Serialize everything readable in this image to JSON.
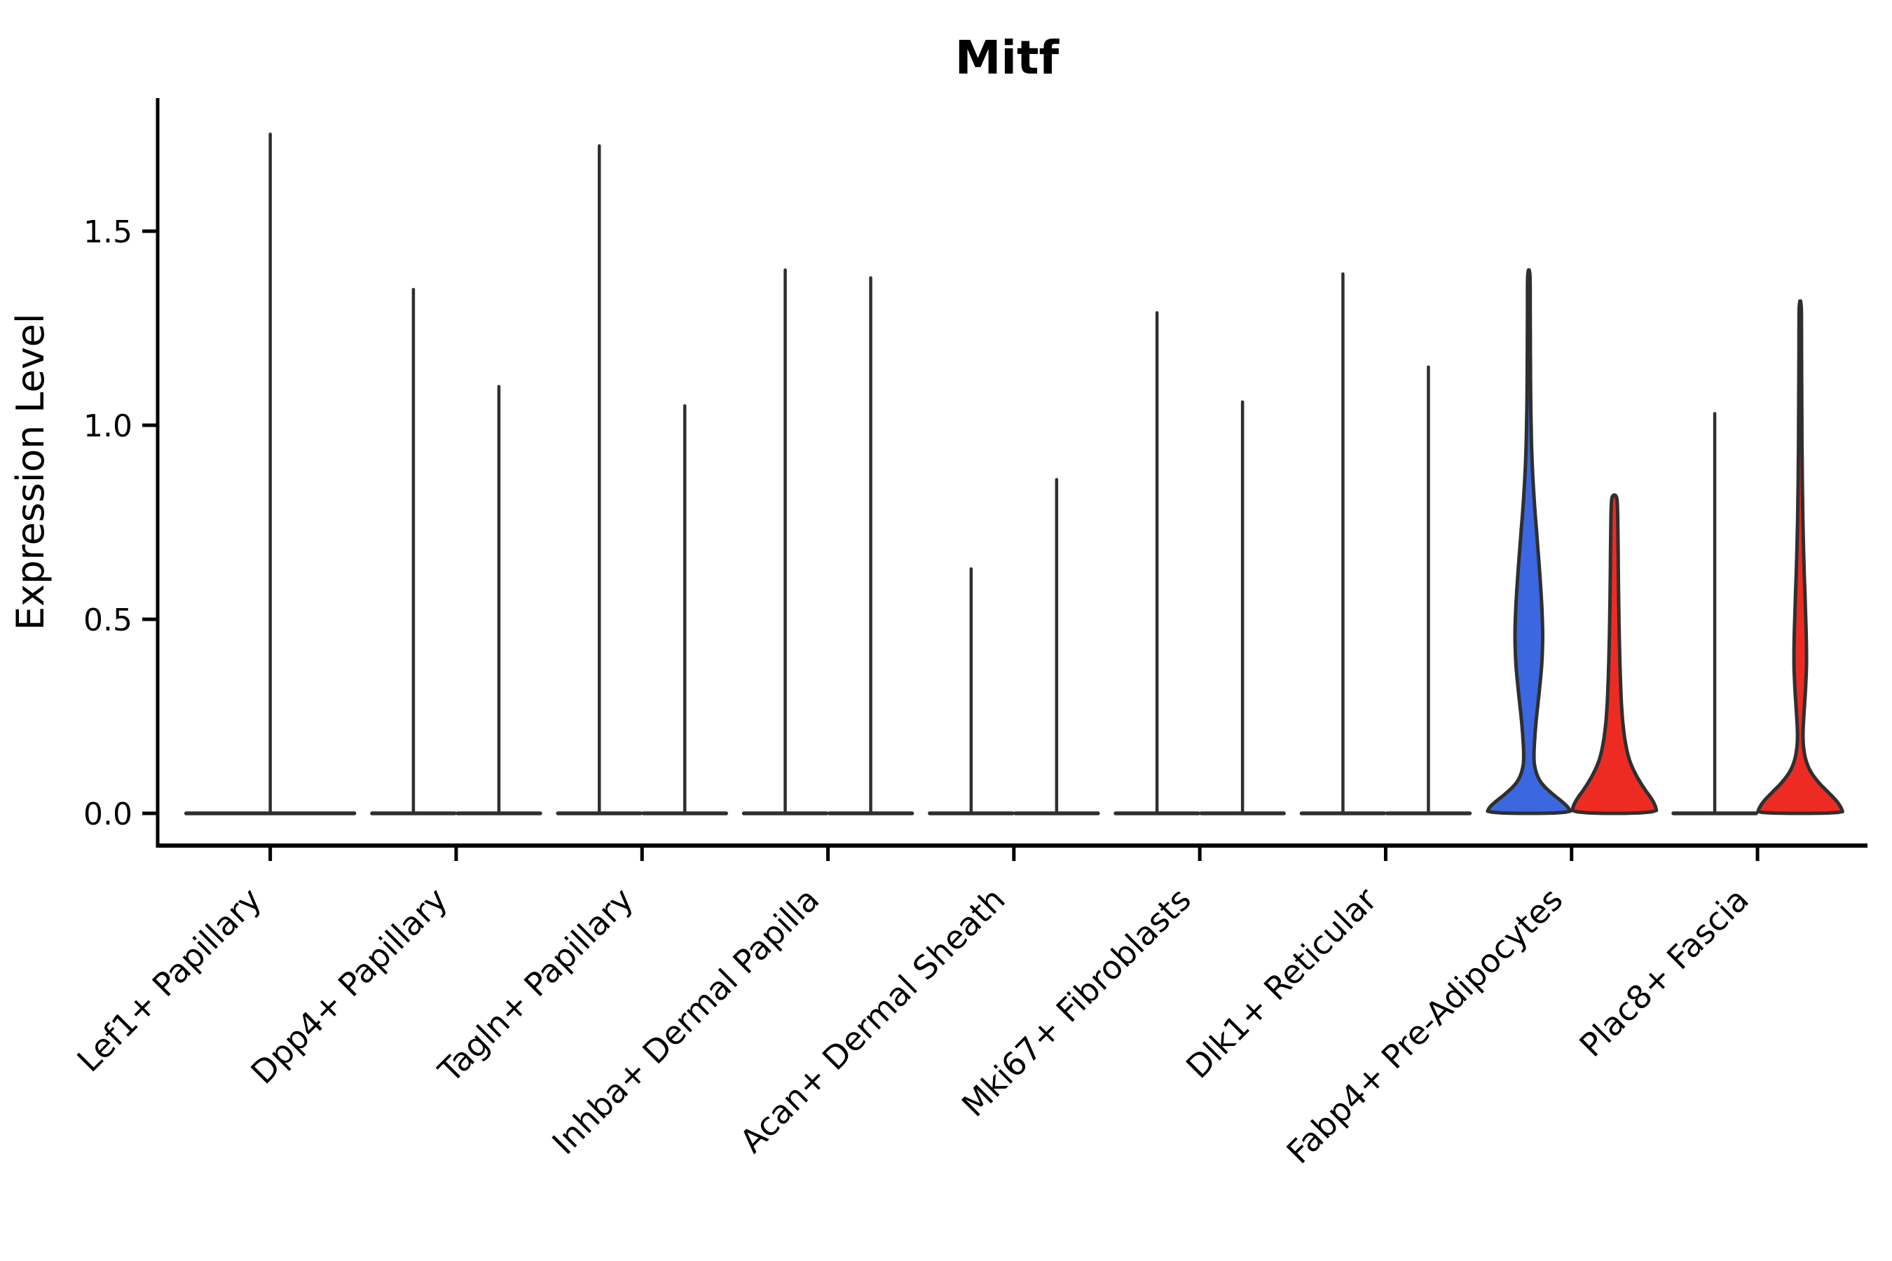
{
  "figure": {
    "title": "Mitf"
  },
  "chart_data": {
    "type": "violin",
    "title": "Mitf",
    "xlabel": "",
    "ylabel": "Expression Level",
    "yticks": [
      0.0,
      0.5,
      1.0,
      1.5
    ],
    "yticklabels": [
      "0.0",
      "0.5",
      "1.0",
      "1.5"
    ],
    "ylim": [
      -0.08,
      1.84
    ],
    "grid": false,
    "legend": "none",
    "categories": [
      "Lef1+ Papillary",
      "Dpp4+ Papillary",
      "Tagln+ Papillary",
      "Inhba+ Dermal Papilla",
      "Acan+ Dermal Sheath",
      "Mki67+ Fibroblasts",
      "Dlk1+ Reticular",
      "Fabp4+ Pre-Adipocytes",
      "Plac8+ Fascia"
    ],
    "colors": {
      "blue": "#3b68e0",
      "red": "#ee2b23",
      "spike": "#2f2f2f",
      "axis": "#000000"
    },
    "violins": [
      {
        "category_index": 0,
        "slot": 0,
        "shape": "spike",
        "max": 1.75,
        "base_halfwidth": 120,
        "color": "spike"
      },
      {
        "category_index": 1,
        "slot": -1,
        "shape": "spike",
        "max": 1.35,
        "base_halfwidth": 59,
        "color": "spike"
      },
      {
        "category_index": 1,
        "slot": 1,
        "shape": "spike",
        "max": 1.1,
        "base_halfwidth": 59,
        "color": "spike"
      },
      {
        "category_index": 2,
        "slot": -1,
        "shape": "spike",
        "max": 1.72,
        "base_halfwidth": 59,
        "color": "spike"
      },
      {
        "category_index": 2,
        "slot": 1,
        "shape": "spike",
        "max": 1.05,
        "base_halfwidth": 59,
        "color": "spike"
      },
      {
        "category_index": 3,
        "slot": -1,
        "shape": "spike",
        "max": 1.4,
        "base_halfwidth": 59,
        "color": "spike"
      },
      {
        "category_index": 3,
        "slot": 1,
        "shape": "spike",
        "max": 1.38,
        "base_halfwidth": 59,
        "color": "spike"
      },
      {
        "category_index": 4,
        "slot": -1,
        "shape": "spike",
        "max": 0.63,
        "base_halfwidth": 59,
        "color": "spike"
      },
      {
        "category_index": 4,
        "slot": 1,
        "shape": "spike",
        "max": 0.86,
        "base_halfwidth": 59,
        "color": "spike"
      },
      {
        "category_index": 5,
        "slot": -1,
        "shape": "spike",
        "max": 1.29,
        "base_halfwidth": 59,
        "color": "spike"
      },
      {
        "category_index": 5,
        "slot": 1,
        "shape": "spike",
        "max": 1.06,
        "base_halfwidth": 59,
        "color": "spike"
      },
      {
        "category_index": 6,
        "slot": -1,
        "shape": "spike",
        "max": 1.39,
        "base_halfwidth": 59,
        "color": "spike"
      },
      {
        "category_index": 6,
        "slot": 1,
        "shape": "spike",
        "max": 1.15,
        "base_halfwidth": 59,
        "color": "spike"
      },
      {
        "category_index": 7,
        "slot": -1,
        "shape": "violin",
        "max": 1.4,
        "color": "blue",
        "profile": [
          [
            1.4,
            0.03
          ],
          [
            1.32,
            0.032
          ],
          [
            1.24,
            0.034
          ],
          [
            1.16,
            0.037
          ],
          [
            1.08,
            0.042
          ],
          [
            1.0,
            0.052
          ],
          [
            0.93,
            0.068
          ],
          [
            0.86,
            0.095
          ],
          [
            0.79,
            0.135
          ],
          [
            0.72,
            0.185
          ],
          [
            0.65,
            0.235
          ],
          [
            0.58,
            0.28
          ],
          [
            0.52,
            0.31
          ],
          [
            0.47,
            0.325
          ],
          [
            0.42,
            0.32
          ],
          [
            0.37,
            0.295
          ],
          [
            0.32,
            0.25
          ],
          [
            0.27,
            0.2
          ],
          [
            0.22,
            0.155
          ],
          [
            0.18,
            0.13
          ],
          [
            0.15,
            0.117
          ],
          [
            0.12,
            0.13
          ],
          [
            0.09,
            0.22
          ],
          [
            0.07,
            0.35
          ],
          [
            0.05,
            0.55
          ],
          [
            0.03,
            0.78
          ],
          [
            0.015,
            0.93
          ],
          [
            0.0,
            0.985
          ]
        ]
      },
      {
        "category_index": 7,
        "slot": 1,
        "shape": "violin",
        "max": 0.82,
        "color": "red",
        "profile": [
          [
            0.82,
            0.055
          ],
          [
            0.79,
            0.075
          ],
          [
            0.74,
            0.082
          ],
          [
            0.68,
            0.088
          ],
          [
            0.62,
            0.094
          ],
          [
            0.56,
            0.1
          ],
          [
            0.5,
            0.108
          ],
          [
            0.44,
            0.118
          ],
          [
            0.38,
            0.132
          ],
          [
            0.32,
            0.15
          ],
          [
            0.27,
            0.172
          ],
          [
            0.23,
            0.2
          ],
          [
            0.19,
            0.245
          ],
          [
            0.15,
            0.315
          ],
          [
            0.12,
            0.41
          ],
          [
            0.09,
            0.55
          ],
          [
            0.06,
            0.72
          ],
          [
            0.04,
            0.86
          ],
          [
            0.02,
            0.96
          ],
          [
            0.0,
            1.0
          ]
        ]
      },
      {
        "category_index": 8,
        "slot": -1,
        "shape": "spike",
        "max": 1.03,
        "base_halfwidth": 59,
        "color": "spike"
      },
      {
        "category_index": 8,
        "slot": 1,
        "shape": "violin",
        "max": 1.32,
        "color": "red",
        "profile": [
          [
            1.32,
            0.028
          ],
          [
            1.22,
            0.03
          ],
          [
            1.12,
            0.033
          ],
          [
            1.02,
            0.037
          ],
          [
            0.92,
            0.043
          ],
          [
            0.82,
            0.052
          ],
          [
            0.72,
            0.068
          ],
          [
            0.63,
            0.09
          ],
          [
            0.55,
            0.115
          ],
          [
            0.48,
            0.135
          ],
          [
            0.42,
            0.148
          ],
          [
            0.37,
            0.145
          ],
          [
            0.32,
            0.125
          ],
          [
            0.27,
            0.095
          ],
          [
            0.23,
            0.072
          ],
          [
            0.2,
            0.062
          ],
          [
            0.17,
            0.075
          ],
          [
            0.14,
            0.12
          ],
          [
            0.11,
            0.22
          ],
          [
            0.08,
            0.42
          ],
          [
            0.055,
            0.65
          ],
          [
            0.03,
            0.87
          ],
          [
            0.012,
            0.97
          ],
          [
            0.0,
            1.0
          ]
        ]
      }
    ]
  }
}
